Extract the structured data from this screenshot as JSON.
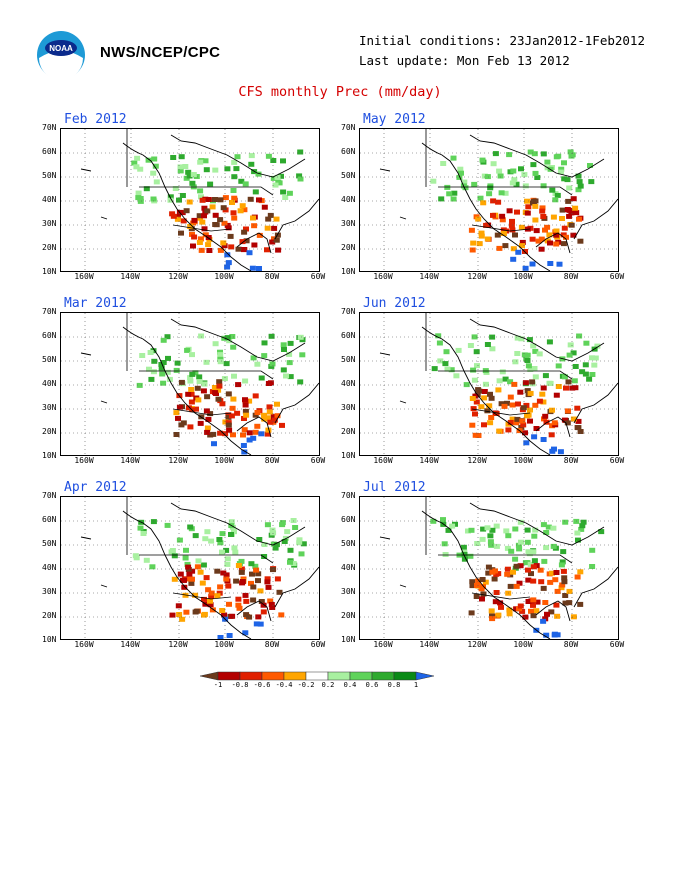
{
  "header": {
    "agency": "NWS/NCEP/CPC",
    "initial_conditions": "Initial conditions: 23Jan2012-1Feb2012",
    "last_update": "Last update: Mon Feb 13 2012",
    "title": "CFS monthly Prec (mm/day)"
  },
  "axes": {
    "lat_labels": [
      "70N",
      "60N",
      "50N",
      "40N",
      "30N",
      "20N",
      "10N"
    ],
    "lon_labels": [
      "160W",
      "140W",
      "120W",
      "100W",
      "80W",
      "60W"
    ]
  },
  "panels": [
    {
      "label": "Feb 2012"
    },
    {
      "label": "May 2012"
    },
    {
      "label": "Mar 2012"
    },
    {
      "label": "Jun 2012"
    },
    {
      "label": "Apr 2012"
    },
    {
      "label": "Jul 2012"
    }
  ],
  "legend": {
    "labels": [
      "-1",
      "-0.8",
      "-0.6",
      "-0.4",
      "-0.2",
      "0.2",
      "0.4",
      "0.6",
      "0.8",
      "1"
    ],
    "colors": [
      "#6b3a1c",
      "#b30000",
      "#e02000",
      "#ff5a00",
      "#ffa500",
      "#ffffff",
      "#a8f0a0",
      "#5fd35a",
      "#2eaa2e",
      "#0a8a16",
      "#1e64e6"
    ]
  }
}
